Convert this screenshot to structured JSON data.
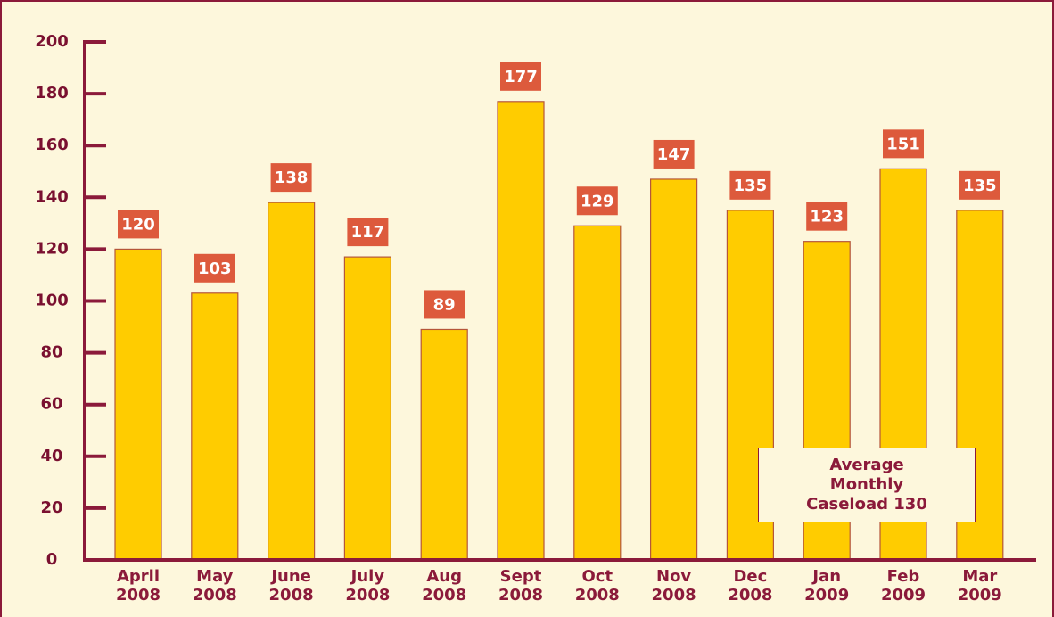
{
  "chart_data": {
    "type": "bar",
    "categories": [
      "April 2008",
      "May 2008",
      "June 2008",
      "July 2008",
      "Aug 2008",
      "Sept 2008",
      "Oct 2008",
      "Nov 2008",
      "Dec 2008",
      "Jan 2009",
      "Feb 2009",
      "Mar 2009"
    ],
    "values": [
      120,
      103,
      138,
      117,
      89,
      177,
      129,
      147,
      135,
      123,
      151,
      135
    ],
    "color": "#ffcc00",
    "label_color": "#dd5a3c",
    "ylim": [
      0,
      200
    ],
    "yticks": [
      0,
      20,
      40,
      60,
      80,
      100,
      120,
      140,
      160,
      180,
      200
    ],
    "annotation": "Average Monthly Caseload 130"
  }
}
